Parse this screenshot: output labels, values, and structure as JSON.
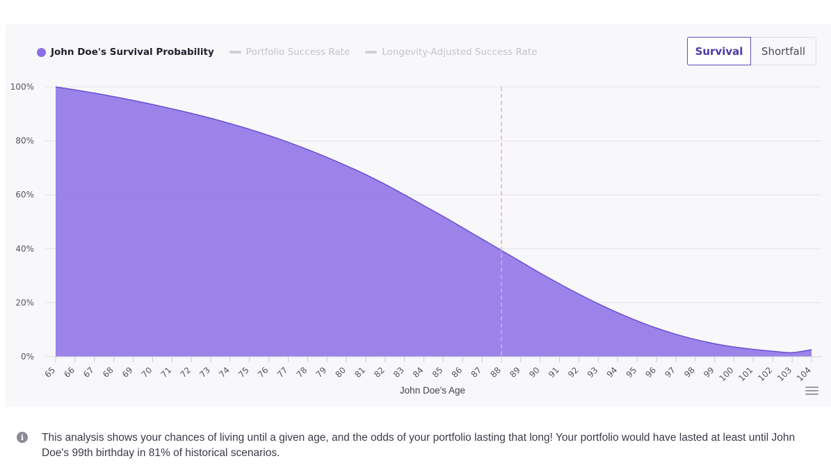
{
  "legend": {
    "active": "John Doe's Survival Probability",
    "inactive1": "Portfolio Success Rate",
    "inactive2": "Longevity-Adjusted Success Rate"
  },
  "toggle": {
    "survival": "Survival",
    "shortfall": "Shortfall"
  },
  "info": {
    "text": "This analysis shows your chances of living until a given age, and the odds of your portfolio lasting that long! Your portfolio would have lasted at least until John Doe's 99th birthday in 81% of historical scenarios."
  },
  "colors": {
    "series": "#8c6fe6",
    "series_line": "#6a4fd4",
    "marker": "#f0a8c0",
    "grid": "#e4e4ea",
    "axis_text": "#55555f"
  },
  "chart_data": {
    "type": "area",
    "x": [
      65,
      66,
      67,
      68,
      69,
      70,
      71,
      72,
      73,
      74,
      75,
      76,
      77,
      78,
      79,
      80,
      81,
      82,
      83,
      84,
      85,
      86,
      87,
      88,
      89,
      90,
      91,
      92,
      93,
      94,
      95,
      96,
      97,
      98,
      99,
      100,
      101,
      102,
      103,
      104
    ],
    "series": [
      {
        "name": "John Doe's Survival Probability",
        "values": [
          100,
          98.9,
          97.7,
          96.4,
          95.0,
          93.5,
          91.9,
          90.2,
          88.4,
          86.4,
          84.3,
          82.0,
          79.5,
          76.8,
          73.9,
          70.8,
          67.5,
          63.9,
          60.0,
          56.0,
          52.0,
          47.8,
          43.6,
          39.4,
          35.2,
          31.0,
          27.0,
          23.2,
          19.6,
          16.3,
          13.3,
          10.6,
          8.3,
          6.4,
          4.8,
          3.6,
          2.7,
          2.0,
          1.5,
          2.6
        ]
      }
    ],
    "xlabel": "John Doe's Age",
    "ylabel": "",
    "ylim": [
      0,
      100
    ],
    "yticks": [
      "0%",
      "20%",
      "40%",
      "60%",
      "80%",
      "100%"
    ],
    "marker_x": 88,
    "grid": true,
    "legend_position": "top-left"
  }
}
